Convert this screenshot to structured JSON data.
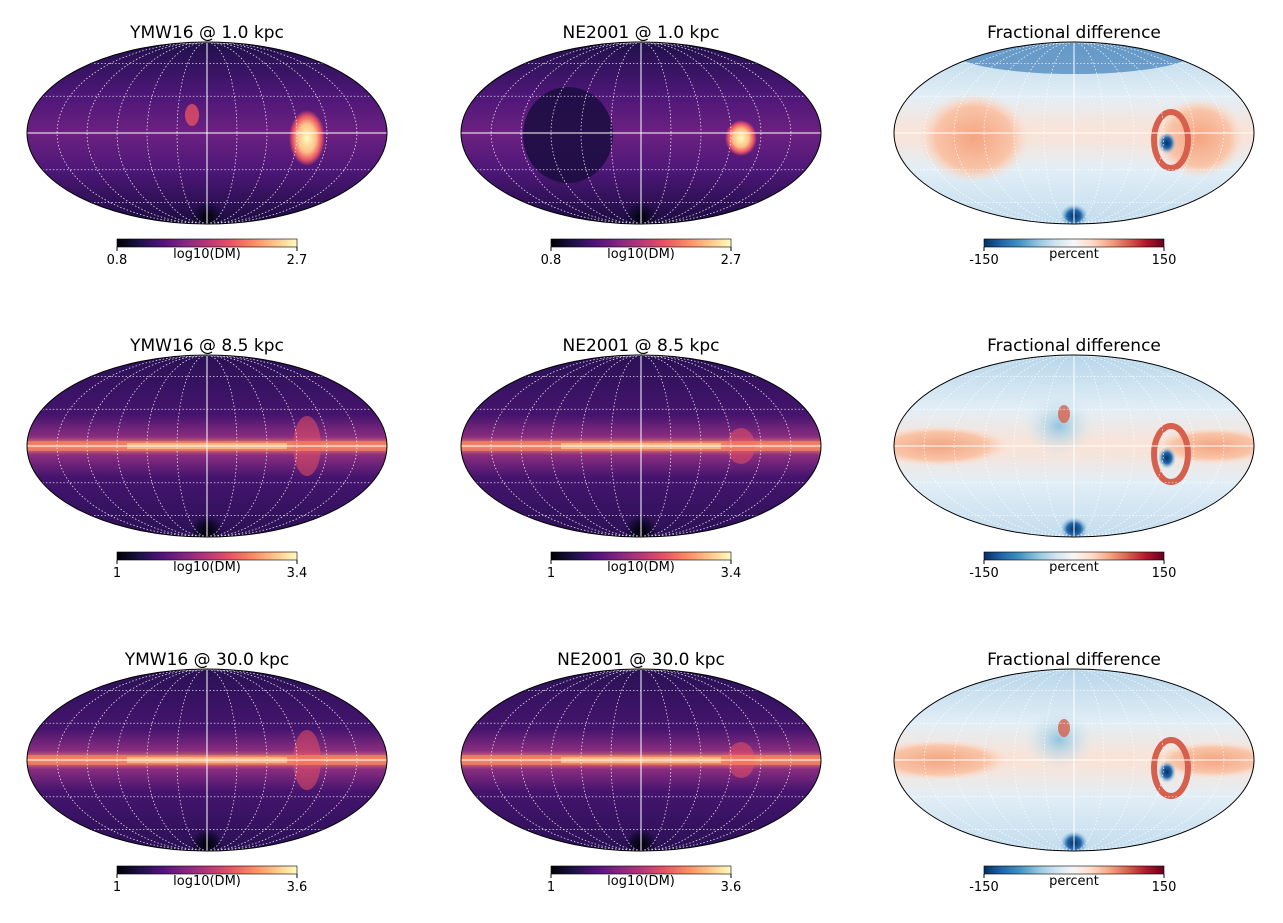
{
  "chart_data": [
    {
      "type": "heatmap",
      "projection": "mollweide",
      "title": "YMW16 @ 1.0 kpc",
      "model": "YMW16",
      "distance_kpc": 1.0,
      "cmap": "magma",
      "colorbar": {
        "label": "log10(DM)",
        "min_label": "0.8",
        "max_label": "2.7",
        "min": 0.8,
        "max": 2.7
      }
    },
    {
      "type": "heatmap",
      "projection": "mollweide",
      "title": "NE2001 @ 1.0 kpc",
      "model": "NE2001",
      "distance_kpc": 1.0,
      "cmap": "magma",
      "colorbar": {
        "label": "log10(DM)",
        "min_label": "0.8",
        "max_label": "2.7",
        "min": 0.8,
        "max": 2.7
      }
    },
    {
      "type": "heatmap",
      "projection": "mollweide",
      "title": "Fractional difference",
      "distance_kpc": 1.0,
      "cmap": "RdBu_r",
      "colorbar": {
        "label": "percent",
        "min_label": "-150",
        "max_label": "150",
        "min": -150,
        "max": 150
      }
    },
    {
      "type": "heatmap",
      "projection": "mollweide",
      "title": "YMW16 @ 8.5 kpc",
      "model": "YMW16",
      "distance_kpc": 8.5,
      "cmap": "magma",
      "colorbar": {
        "label": "log10(DM)",
        "min_label": "1",
        "max_label": "3.4",
        "min": 1,
        "max": 3.4
      }
    },
    {
      "type": "heatmap",
      "projection": "mollweide",
      "title": "NE2001 @ 8.5 kpc",
      "model": "NE2001",
      "distance_kpc": 8.5,
      "cmap": "magma",
      "colorbar": {
        "label": "log10(DM)",
        "min_label": "1",
        "max_label": "3.4",
        "min": 1,
        "max": 3.4
      }
    },
    {
      "type": "heatmap",
      "projection": "mollweide",
      "title": "Fractional difference",
      "distance_kpc": 8.5,
      "cmap": "RdBu_r",
      "colorbar": {
        "label": "percent",
        "min_label": "-150",
        "max_label": "150",
        "min": -150,
        "max": 150
      }
    },
    {
      "type": "heatmap",
      "projection": "mollweide",
      "title": "YMW16 @ 30.0 kpc",
      "model": "YMW16",
      "distance_kpc": 30.0,
      "cmap": "magma",
      "colorbar": {
        "label": "log10(DM)",
        "min_label": "1",
        "max_label": "3.6",
        "min": 1,
        "max": 3.6
      }
    },
    {
      "type": "heatmap",
      "projection": "mollweide",
      "title": "NE2001 @ 30.0 kpc",
      "model": "NE2001",
      "distance_kpc": 30.0,
      "cmap": "magma",
      "colorbar": {
        "label": "log10(DM)",
        "min_label": "1",
        "max_label": "3.6",
        "min": 1,
        "max": 3.6
      }
    },
    {
      "type": "heatmap",
      "projection": "mollweide",
      "title": "Fractional difference",
      "distance_kpc": 30.0,
      "cmap": "RdBu_r",
      "colorbar": {
        "label": "percent",
        "min_label": "-150",
        "max_label": "150",
        "min": -150,
        "max": 150
      }
    }
  ],
  "colors": {
    "magma": [
      "#000004",
      "#1d1147",
      "#51127c",
      "#822681",
      "#b63679",
      "#e65164",
      "#fb8861",
      "#fec287",
      "#fcfdbf"
    ],
    "rdbu": [
      "#053061",
      "#2166ac",
      "#4393c3",
      "#92c5de",
      "#d1e5f0",
      "#f7f7f7",
      "#fddbc7",
      "#f4a582",
      "#d6604d",
      "#b2182b",
      "#67001f"
    ]
  }
}
